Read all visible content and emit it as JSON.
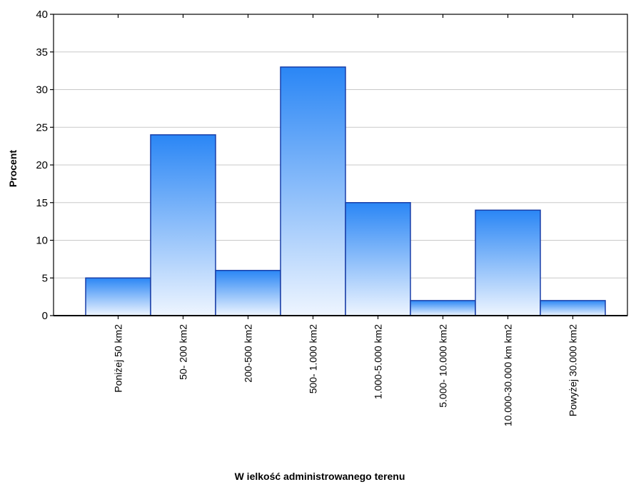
{
  "chart_data": {
    "type": "bar",
    "xlabel": "W ielkość administrowanego terenu",
    "ylabel": "Procent",
    "ylim": [
      0,
      40
    ],
    "yticks": [
      0,
      5,
      10,
      15,
      20,
      25,
      30,
      35,
      40
    ],
    "grid": true,
    "categories": [
      "Poniżej 50 km2",
      "50- 200 km2",
      "200-500 km2",
      "500- 1.000 km2",
      "1.000-5.000 km2",
      "5.000- 10.000 km2",
      "10.000-30.000 km km2",
      "Powyżej 30.000 km2"
    ],
    "values": [
      5,
      24,
      6,
      33,
      15,
      2,
      14,
      2
    ],
    "colors": {
      "bar_top": "#2a86f5",
      "bar_bottom": "#eef5ff",
      "bar_stroke": "#1a3fa8",
      "grid": "#c8c8c8",
      "axis": "#000000"
    }
  }
}
